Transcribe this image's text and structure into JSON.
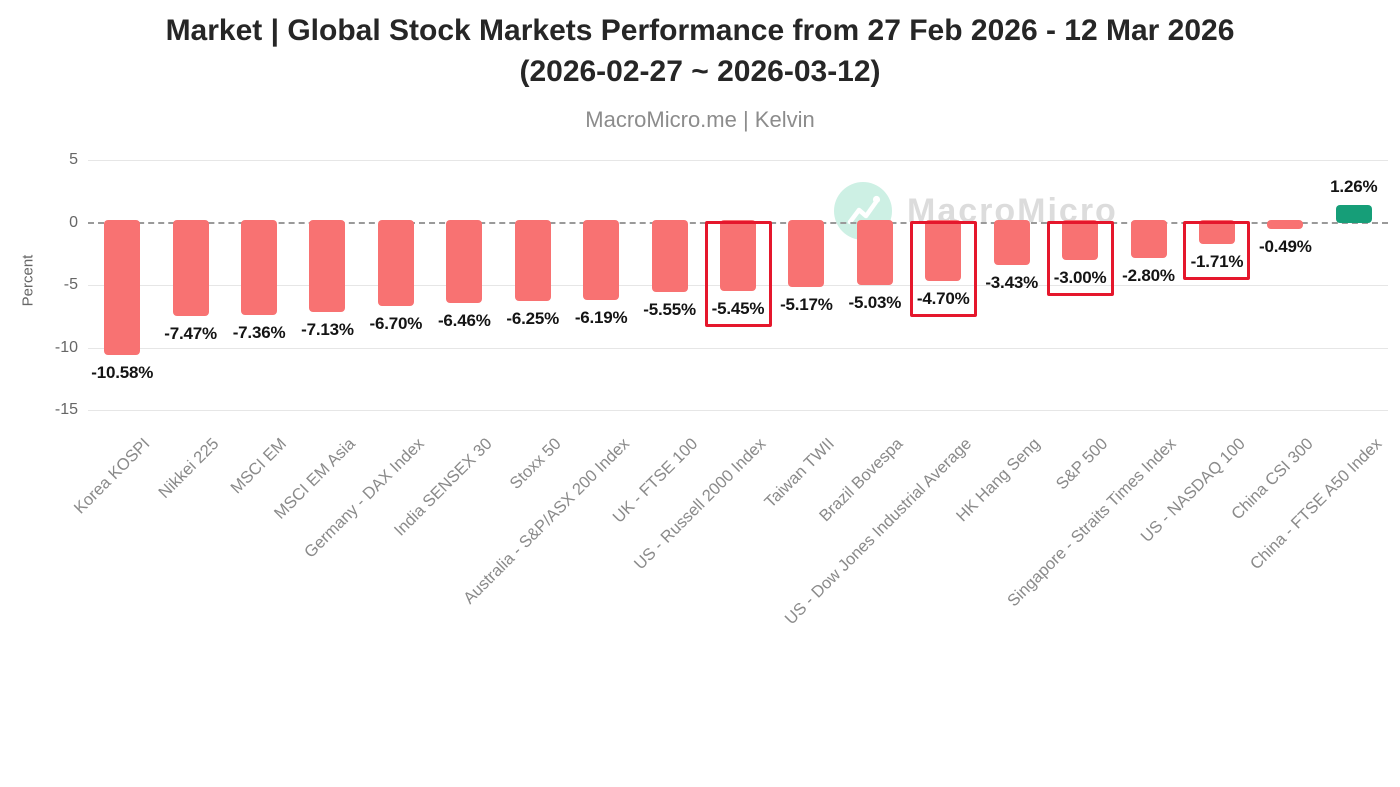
{
  "chart_data": {
    "type": "bar",
    "title_line1": "Market | Global Stock Markets Performance from 27 Feb 2026 - 12 Mar 2026",
    "title_line2": "(2026-02-27 ~ 2026-03-12)",
    "subtitle": "MacroMicro.me | Kelvin",
    "ylabel": "Percent",
    "watermark_text": "MacroMicro",
    "y_ticks": [
      5,
      0,
      -5,
      -10,
      -15
    ],
    "ylim": [
      -15,
      5
    ],
    "grid": true,
    "legend_position": "none",
    "categories": [
      "Korea KOSPI",
      "Nikkei 225",
      "MSCI EM",
      "MSCI EM Asia",
      "Germany - DAX Index",
      "India SENSEX 30",
      "Stoxx 50",
      "Australia - S&P/ASX 200 Index",
      "UK - FTSE 100",
      "US - Russell 2000 Index",
      "Taiwan TWII",
      "Brazil Bovespa",
      "US - Dow Jones Industrial Average",
      "HK Hang Seng",
      "S&P 500",
      "Singapore - Straits Times Index",
      "US - NASDAQ 100",
      "China CSI 300",
      "China - FTSE A50 Index"
    ],
    "values": [
      -10.58,
      -7.47,
      -7.36,
      -7.13,
      -6.7,
      -6.46,
      -6.25,
      -6.19,
      -5.55,
      -5.45,
      -5.17,
      -5.03,
      -4.7,
      -3.43,
      -3.0,
      -2.8,
      -1.71,
      -0.49,
      1.26
    ],
    "value_labels": [
      "-10.58%",
      "-7.47%",
      "-7.36%",
      "-7.13%",
      "-6.70%",
      "-6.46%",
      "-6.25%",
      "-6.19%",
      "-5.55%",
      "-5.45%",
      "-5.17%",
      "-5.03%",
      "-4.70%",
      "-3.43%",
      "-3.00%",
      "-2.80%",
      "-1.71%",
      "-0.49%",
      "1.26%"
    ],
    "highlighted_indices": [
      9,
      12,
      14,
      16
    ],
    "colors": {
      "negative_bar": "#f87272",
      "positive_bar": "#169e78",
      "highlight_box": "#e5172c",
      "gridline": "#e6e6e6",
      "zero_line": "#9a9a9a",
      "axis_text": "#666666",
      "category_text": "#8a8a8a",
      "value_text": "#141414",
      "title_text": "#262626",
      "subtitle_text": "#8c8c8c",
      "watermark_text": "#dcdcdc",
      "watermark_circle": "#c9efe2"
    }
  }
}
